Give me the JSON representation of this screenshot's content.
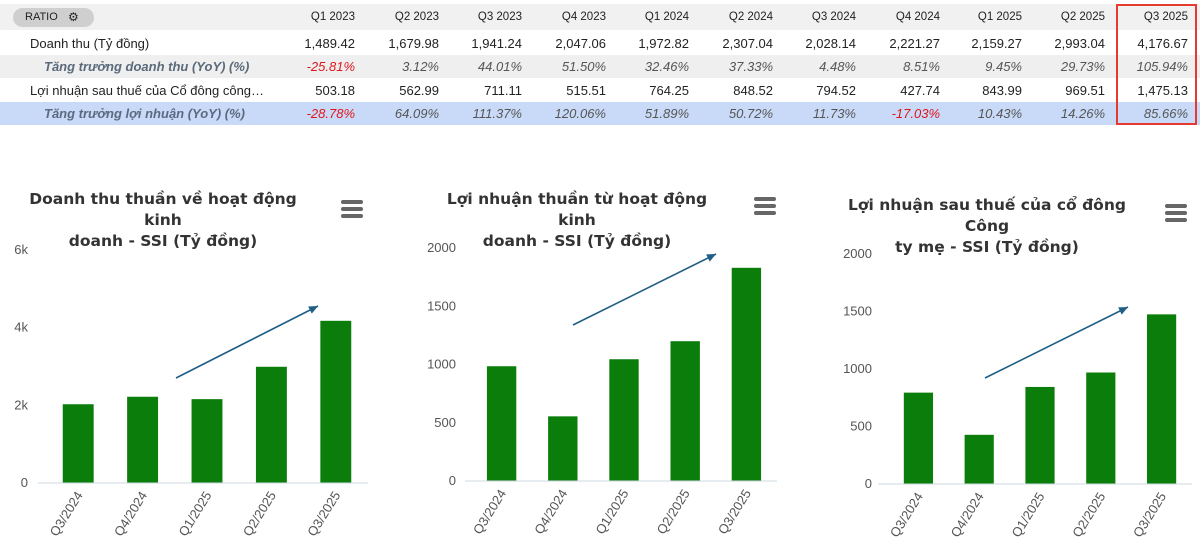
{
  "table": {
    "ratio_label": "RATIO",
    "settings_icon": "gear-icon",
    "columns": [
      "Q1 2023",
      "Q2 2023",
      "Q3 2023",
      "Q4 2023",
      "Q1 2024",
      "Q2 2024",
      "Q3 2024",
      "Q4 2024",
      "Q1 2025",
      "Q2 2025",
      "Q3 2025"
    ],
    "highlighted_column": "Q3 2025",
    "rows": [
      {
        "label": "Doanh thu (Tỷ đồng)",
        "values": [
          "1,489.42",
          "1,679.98",
          "1,941.24",
          "2,047.06",
          "1,972.82",
          "2,307.04",
          "2,028.14",
          "2,221.27",
          "2,159.27",
          "2,993.04",
          "4,176.67"
        ]
      },
      {
        "label": "Tăng trưởng doanh thu (YoY) (%)",
        "values": [
          "-25.81%",
          "3.12%",
          "44.01%",
          "51.50%",
          "32.46%",
          "37.33%",
          "4.48%",
          "8.51%",
          "9.45%",
          "29.73%",
          "105.94%"
        ]
      },
      {
        "label": "Lợi nhuận sau thuế của Cổ đông công…",
        "values": [
          "503.18",
          "562.99",
          "711.11",
          "515.51",
          "764.25",
          "848.52",
          "794.52",
          "427.74",
          "843.99",
          "969.51",
          "1,475.13"
        ]
      },
      {
        "label": "Tăng trưởng lợi nhuận (YoY) (%)",
        "values": [
          "-28.78%",
          "64.09%",
          "111.37%",
          "120.06%",
          "51.89%",
          "50.72%",
          "11.73%",
          "-17.03%",
          "10.43%",
          "14.26%",
          "85.66%"
        ]
      }
    ]
  },
  "colors": {
    "bar": "#0a7d0a",
    "arrow": "#1f5f86",
    "negative": "#e0151b",
    "highlight_border": "#e43a2f",
    "highlight_row": "#c8daf7"
  },
  "chart_data": [
    {
      "type": "bar",
      "title": "Doanh thu thuần về hoạt động kinh doanh - SSI (Tỷ đồng)",
      "title_lines": [
        "Doanh thu thuần về hoạt động kinh",
        "doanh - SSI (Tỷ đồng)"
      ],
      "categories": [
        "Q3/2024",
        "Q4/2024",
        "Q1/2025",
        "Q2/2025",
        "Q3/2025"
      ],
      "values": [
        2028.14,
        2221.27,
        2159.27,
        2993.04,
        4176.67
      ],
      "ylim": [
        0,
        6000
      ],
      "yticks": [
        0,
        2000,
        4000,
        6000
      ],
      "ytick_labels": [
        "0",
        "2k",
        "4k",
        "6k"
      ],
      "grid": false,
      "trend_arrow": true
    },
    {
      "type": "bar",
      "title": "Lợi nhuận thuần từ hoạt động kinh doanh - SSI (Tỷ đồng)",
      "title_lines": [
        "Lợi nhuận thuần từ hoạt động kinh",
        "doanh - SSI (Tỷ đồng)"
      ],
      "categories": [
        "Q3/2024",
        "Q4/2024",
        "Q1/2025",
        "Q2/2025",
        "Q3/2025"
      ],
      "values": [
        985,
        555,
        1045,
        1200,
        1830
      ],
      "ylim": [
        0,
        2000
      ],
      "yticks": [
        0,
        500,
        1000,
        1500,
        2000
      ],
      "ytick_labels": [
        "0",
        "500",
        "1000",
        "1500",
        "2000"
      ],
      "grid": false,
      "trend_arrow": true
    },
    {
      "type": "bar",
      "title": "Lợi nhuận sau thuế của cổ đông Công ty mẹ - SSI (Tỷ đồng)",
      "title_lines": [
        "Lợi nhuận sau thuế của cổ đông Công",
        "ty mẹ - SSI (Tỷ đồng)"
      ],
      "categories": [
        "Q3/2024",
        "Q4/2024",
        "Q1/2025",
        "Q2/2025",
        "Q3/2025"
      ],
      "values": [
        794.52,
        427.74,
        843.99,
        969.51,
        1475.13
      ],
      "ylim": [
        0,
        2000
      ],
      "yticks": [
        0,
        500,
        1000,
        1500,
        2000
      ],
      "ytick_labels": [
        "0",
        "500",
        "1000",
        "1500",
        "2000"
      ],
      "grid": false,
      "trend_arrow": true
    }
  ]
}
